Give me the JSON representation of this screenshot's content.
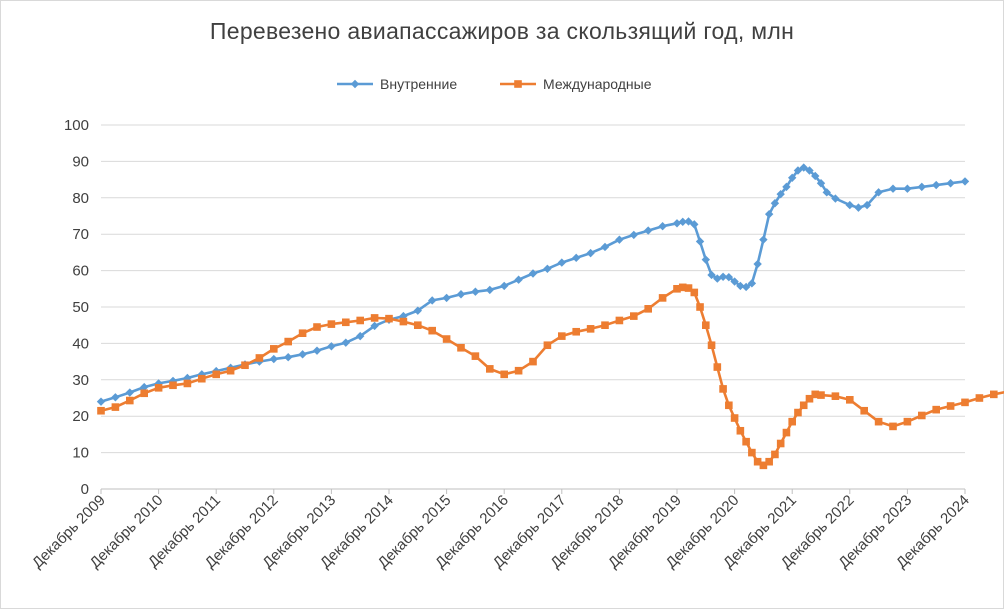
{
  "chart_data": {
    "type": "line",
    "title": "Перевезено авиапассажиров за скользящий год, млн",
    "xlabel": "",
    "ylabel": "",
    "ylim": [
      0,
      100
    ],
    "yticks": [
      "0",
      "10",
      "20",
      "30",
      "40",
      "50",
      "60",
      "70",
      "80",
      "90",
      "100"
    ],
    "categories": [
      "Декабрь 2009",
      "Декабрь 2010",
      "Декабрь 2011",
      "Декабрь 2012",
      "Декабрь 2013",
      "Декабрь 2014",
      "Декабрь 2015",
      "Декабрь 2016",
      "Декабрь 2017",
      "Декабрь 2018",
      "Декабрь 2019",
      "Декабрь 2020",
      "Декабрь 2021",
      "Декабрь 2022",
      "Декабрь 2023",
      "Декабрь 2024"
    ],
    "legend_position": "top",
    "grid": true,
    "series": [
      {
        "name": "Внутренние",
        "color": "#5b9bd5",
        "marker": "diamond",
        "points": [
          [
            0,
            24
          ],
          [
            0.25,
            25.2
          ],
          [
            0.5,
            26.5
          ],
          [
            0.75,
            28
          ],
          [
            1,
            29
          ],
          [
            1.25,
            29.7
          ],
          [
            1.5,
            30.5
          ],
          [
            1.75,
            31.5
          ],
          [
            2,
            32.4
          ],
          [
            2.25,
            33.3
          ],
          [
            2.5,
            34.2
          ],
          [
            2.75,
            35
          ],
          [
            3,
            35.7
          ],
          [
            3.25,
            36.2
          ],
          [
            3.5,
            37
          ],
          [
            3.75,
            38
          ],
          [
            4,
            39.2
          ],
          [
            4.25,
            40.2
          ],
          [
            4.5,
            42
          ],
          [
            4.75,
            44.8
          ],
          [
            5,
            46.5
          ],
          [
            5.25,
            47.5
          ],
          [
            5.5,
            49
          ],
          [
            5.75,
            51.8
          ],
          [
            6,
            52.5
          ],
          [
            6.25,
            53.5
          ],
          [
            6.5,
            54.2
          ],
          [
            6.75,
            54.7
          ],
          [
            7,
            55.8
          ],
          [
            7.25,
            57.5
          ],
          [
            7.5,
            59.2
          ],
          [
            7.75,
            60.5
          ],
          [
            8,
            62.2
          ],
          [
            8.25,
            63.5
          ],
          [
            8.5,
            64.8
          ],
          [
            8.75,
            66.5
          ],
          [
            9,
            68.5
          ],
          [
            9.25,
            69.8
          ],
          [
            9.5,
            71
          ],
          [
            9.75,
            72.2
          ],
          [
            10,
            73
          ],
          [
            10.1,
            73.4
          ],
          [
            10.2,
            73.5
          ],
          [
            10.3,
            72.7
          ],
          [
            10.4,
            68
          ],
          [
            10.5,
            63
          ],
          [
            10.6,
            58.8
          ],
          [
            10.7,
            57.8
          ],
          [
            10.8,
            58.3
          ],
          [
            10.9,
            58.2
          ],
          [
            11,
            57
          ],
          [
            11.1,
            55.8
          ],
          [
            11.2,
            55.5
          ],
          [
            11.3,
            56.5
          ],
          [
            11.4,
            61.8
          ],
          [
            11.5,
            68.5
          ],
          [
            11.6,
            75.5
          ],
          [
            11.7,
            78.5
          ],
          [
            11.8,
            81
          ],
          [
            11.9,
            83
          ],
          [
            12,
            85.5
          ],
          [
            12.1,
            87.5
          ],
          [
            12.2,
            88.3
          ],
          [
            12.3,
            87.5
          ],
          [
            12.4,
            86
          ],
          [
            12.5,
            84
          ],
          [
            12.6,
            81.5
          ],
          [
            12.75,
            79.8
          ],
          [
            13,
            78
          ],
          [
            13.15,
            77.3
          ],
          [
            13.3,
            78
          ],
          [
            13.5,
            81.5
          ],
          [
            13.75,
            82.5
          ],
          [
            14,
            82.5
          ],
          [
            14.25,
            83
          ],
          [
            14.5,
            83.5
          ],
          [
            14.75,
            84
          ],
          [
            15,
            84.5
          ]
        ]
      },
      {
        "name": "Международные",
        "color": "#ed7d31",
        "marker": "square",
        "points": [
          [
            0,
            21.5
          ],
          [
            0.25,
            22.5
          ],
          [
            0.5,
            24.3
          ],
          [
            0.75,
            26.3
          ],
          [
            1,
            27.8
          ],
          [
            1.25,
            28.5
          ],
          [
            1.5,
            29
          ],
          [
            1.75,
            30.3
          ],
          [
            2,
            31.5
          ],
          [
            2.25,
            32.5
          ],
          [
            2.5,
            34
          ],
          [
            2.75,
            36
          ],
          [
            3,
            38.5
          ],
          [
            3.25,
            40.5
          ],
          [
            3.5,
            42.8
          ],
          [
            3.75,
            44.5
          ],
          [
            4,
            45.3
          ],
          [
            4.25,
            45.8
          ],
          [
            4.5,
            46.3
          ],
          [
            4.75,
            47
          ],
          [
            5,
            46.8
          ],
          [
            5.25,
            46
          ],
          [
            5.5,
            45
          ],
          [
            5.75,
            43.5
          ],
          [
            6,
            41.2
          ],
          [
            6.25,
            38.8
          ],
          [
            6.5,
            36.5
          ],
          [
            6.75,
            33
          ],
          [
            7,
            31.5
          ],
          [
            7.25,
            32.5
          ],
          [
            7.5,
            35
          ],
          [
            7.75,
            39.5
          ],
          [
            8,
            42
          ],
          [
            8.25,
            43.2
          ],
          [
            8.5,
            44
          ],
          [
            8.75,
            45
          ],
          [
            9,
            46.3
          ],
          [
            9.25,
            47.5
          ],
          [
            9.5,
            49.5
          ],
          [
            9.75,
            52.5
          ],
          [
            10,
            55
          ],
          [
            10.1,
            55.4
          ],
          [
            10.2,
            55.2
          ],
          [
            10.3,
            54
          ],
          [
            10.4,
            50
          ],
          [
            10.5,
            45
          ],
          [
            10.6,
            39.5
          ],
          [
            10.7,
            33.5
          ],
          [
            10.8,
            27.5
          ],
          [
            10.9,
            23
          ],
          [
            11,
            19.5
          ],
          [
            11.1,
            16
          ],
          [
            11.2,
            13
          ],
          [
            11.3,
            10
          ],
          [
            11.4,
            7.5
          ],
          [
            11.5,
            6.5
          ],
          [
            11.6,
            7.5
          ],
          [
            11.7,
            9.5
          ],
          [
            11.8,
            12.5
          ],
          [
            11.9,
            15.5
          ],
          [
            12,
            18.5
          ],
          [
            12.1,
            21
          ],
          [
            12.2,
            23
          ],
          [
            12.3,
            24.8
          ],
          [
            12.4,
            26
          ],
          [
            12.5,
            25.8
          ],
          [
            12.75,
            25.5
          ],
          [
            13,
            24.5
          ],
          [
            13.25,
            21.5
          ],
          [
            13.5,
            18.5
          ],
          [
            13.75,
            17.2
          ],
          [
            14,
            18.5
          ],
          [
            14.25,
            20.2
          ],
          [
            14.5,
            21.8
          ],
          [
            14.75,
            22.8
          ],
          [
            15,
            23.8
          ],
          [
            15.25,
            25
          ],
          [
            15.5,
            26
          ],
          [
            15.75,
            26.8
          ],
          [
            16,
            27
          ]
        ]
      }
    ]
  }
}
